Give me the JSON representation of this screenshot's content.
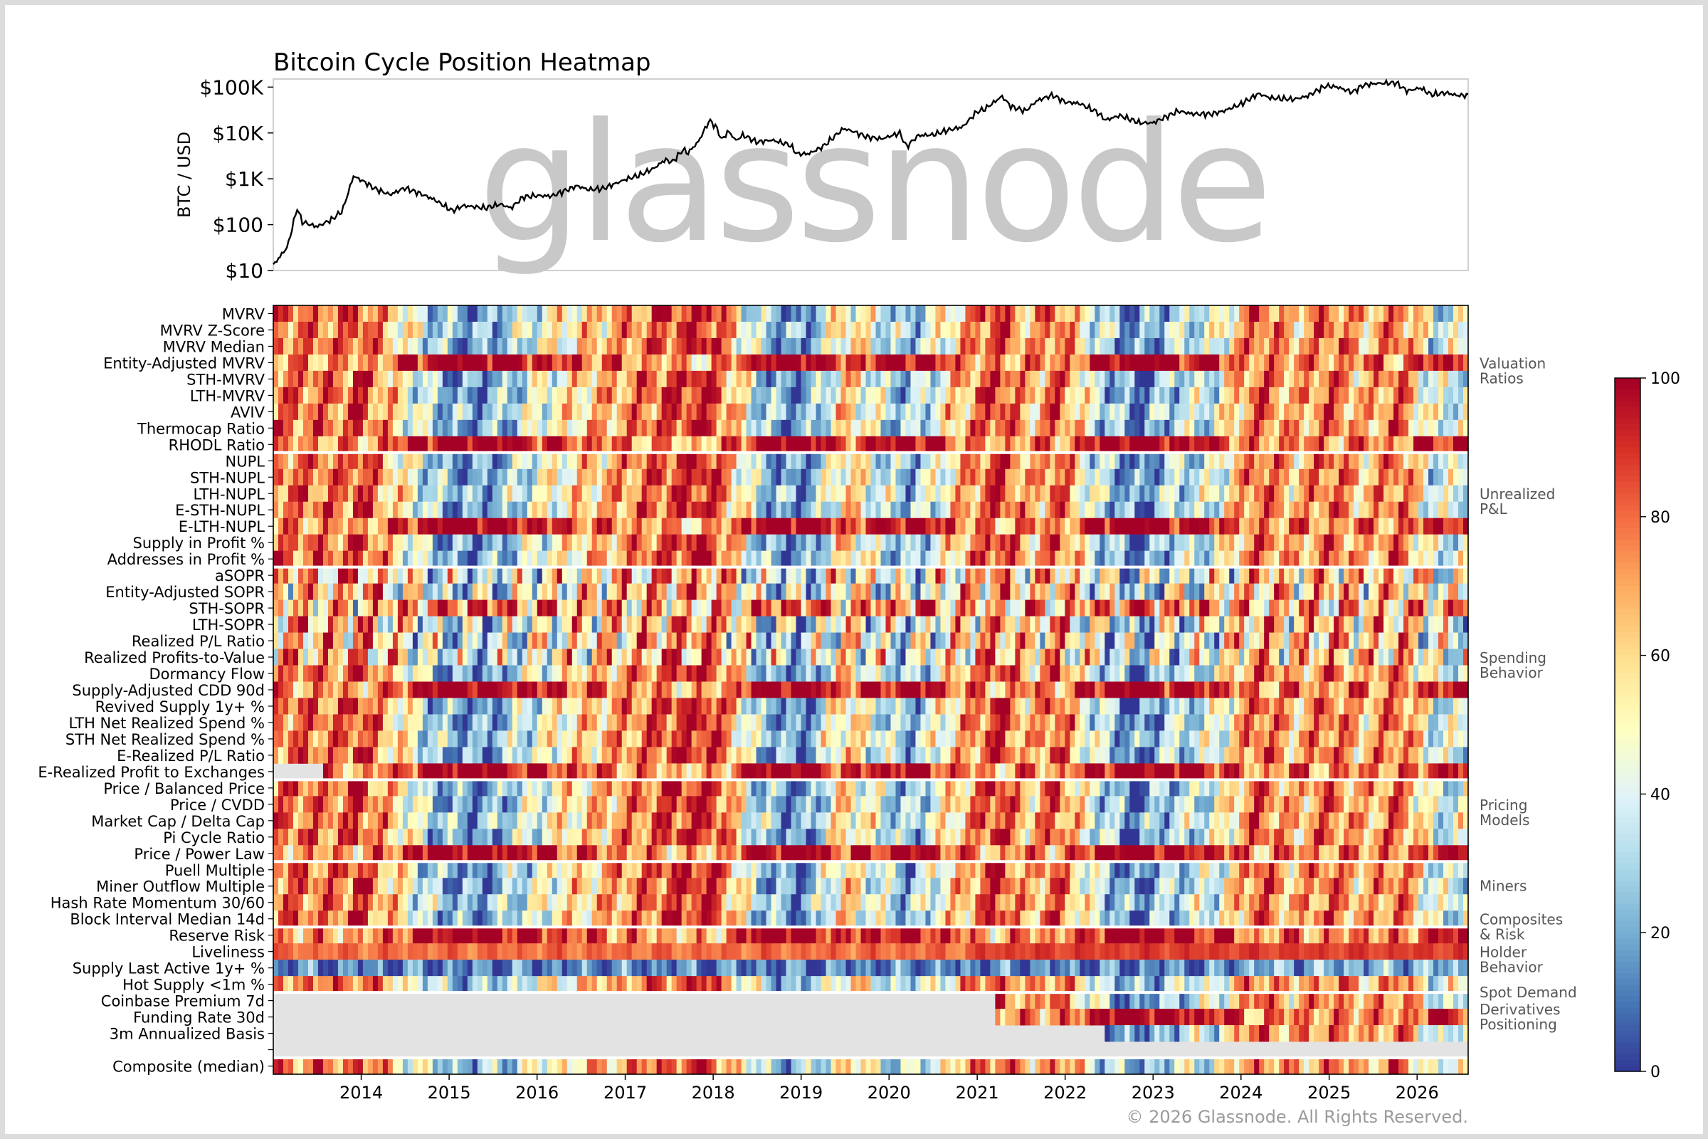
{
  "chart_data": [
    {
      "type": "line",
      "title": "Bitcoin Cycle Position Heatmap",
      "ylabel": "BTC / USD",
      "yscale": "log",
      "ylim": [
        10,
        150000
      ],
      "xlim": [
        "2013-01-01",
        "2026-08-01"
      ],
      "yticks": [
        "$10",
        "$100",
        "$1K",
        "$10K",
        "$100K"
      ],
      "watermark": "glassnode",
      "series": [
        {
          "x": [
            "2013-01-01",
            "2013-03-01",
            "2013-04-10",
            "2013-05-01",
            "2013-07-01",
            "2013-09-01",
            "2013-10-15",
            "2013-11-30",
            "2014-01-15",
            "2014-03-01",
            "2014-05-01",
            "2014-06-30",
            "2014-09-01",
            "2014-11-01",
            "2015-01-14",
            "2015-03-01",
            "2015-06-01",
            "2015-08-01",
            "2015-09-15",
            "2015-11-04",
            "2015-12-31",
            "2016-03-01",
            "2016-06-15",
            "2016-08-01",
            "2016-10-01",
            "2016-12-31",
            "2017-03-01",
            "2017-05-01",
            "2017-06-15",
            "2017-07-15",
            "2017-09-01",
            "2017-09-15",
            "2017-11-01",
            "2017-12-17",
            "2018-01-15",
            "2018-02-06",
            "2018-03-05",
            "2018-04-06",
            "2018-05-05",
            "2018-07-01",
            "2018-09-01",
            "2018-11-15",
            "2018-12-15",
            "2019-02-01",
            "2019-04-01",
            "2019-06-26",
            "2019-08-01",
            "2019-10-01",
            "2019-12-01",
            "2020-02-15",
            "2020-03-13",
            "2020-05-01",
            "2020-07-01",
            "2020-09-01",
            "2020-11-01",
            "2020-12-31",
            "2021-02-01",
            "2021-04-14",
            "2021-05-20",
            "2021-07-20",
            "2021-09-07",
            "2021-11-10",
            "2022-01-01",
            "2022-03-01",
            "2022-05-12",
            "2022-06-18",
            "2022-08-15",
            "2022-11-09",
            "2023-01-01",
            "2023-03-15",
            "2023-04-15",
            "2023-06-15",
            "2023-09-01",
            "2023-10-20",
            "2023-12-31",
            "2024-03-14",
            "2024-05-01",
            "2024-08-05",
            "2024-10-01",
            "2024-12-17",
            "2025-02-01",
            "2025-04-08",
            "2025-05-22",
            "2025-07-14",
            "2025-10-06",
            "2025-11-20",
            "2026-01-15",
            "2026-03-01",
            "2026-05-01",
            "2026-06-15",
            "2026-08-01"
          ],
          "y": [
            13,
            33,
            230,
            115,
            90,
            130,
            200,
            1150,
            850,
            600,
            450,
            630,
            480,
            350,
            200,
            260,
            230,
            280,
            230,
            400,
            430,
            420,
            700,
            580,
            610,
            960,
            1200,
            1700,
            2600,
            2300,
            4500,
            3500,
            6500,
            19000,
            13000,
            7000,
            11000,
            6800,
            9000,
            6300,
            7000,
            5500,
            3500,
            3500,
            5000,
            12500,
            11000,
            8200,
            7400,
            10000,
            5000,
            8800,
            9100,
            11500,
            13500,
            29000,
            33000,
            63000,
            38000,
            30000,
            51000,
            67000,
            47000,
            44000,
            29000,
            19000,
            24000,
            16500,
            16600,
            25000,
            30000,
            26000,
            25800,
            30000,
            42200,
            72000,
            58000,
            54000,
            63000,
            106000,
            101000,
            77000,
            110000,
            120000,
            124000,
            82000,
            96000,
            68000,
            75000,
            66000,
            66000
          ]
        }
      ]
    },
    {
      "type": "heatmap",
      "colorbar": {
        "min": 0,
        "max": 100,
        "ticks": [
          "0",
          "20",
          "40",
          "60",
          "80",
          "100"
        ]
      },
      "xticks": [
        "2014",
        "2015",
        "2016",
        "2017",
        "2018",
        "2019",
        "2020",
        "2021",
        "2022",
        "2023",
        "2024",
        "2025",
        "2026"
      ],
      "rows": [
        {
          "label": "MVRV",
          "group": 0,
          "start": "2013-01-01"
        },
        {
          "label": "MVRV Z-Score",
          "group": 0,
          "start": "2013-01-01"
        },
        {
          "label": "MVRV Median",
          "group": 0,
          "start": "2013-01-01"
        },
        {
          "label": "Entity-Adjusted MVRV",
          "group": 0,
          "start": "2013-01-01"
        },
        {
          "label": "STH-MVRV",
          "group": 0,
          "start": "2013-01-01"
        },
        {
          "label": "LTH-MVRV",
          "group": 0,
          "start": "2013-01-01"
        },
        {
          "label": "AVIV",
          "group": 0,
          "start": "2013-01-01"
        },
        {
          "label": "Thermocap Ratio",
          "group": 0,
          "start": "2013-01-01"
        },
        {
          "label": "RHODL Ratio",
          "group": 0,
          "start": "2013-01-01"
        },
        {
          "label": "NUPL",
          "group": 1,
          "start": "2013-01-01"
        },
        {
          "label": "STH-NUPL",
          "group": 1,
          "start": "2013-01-01"
        },
        {
          "label": "LTH-NUPL",
          "group": 1,
          "start": "2013-01-01"
        },
        {
          "label": "E-STH-NUPL",
          "group": 1,
          "start": "2013-01-01"
        },
        {
          "label": "E-LTH-NUPL",
          "group": 1,
          "start": "2013-01-01"
        },
        {
          "label": "Supply in Profit %",
          "group": 1,
          "start": "2013-01-01"
        },
        {
          "label": "Addresses in Profit %",
          "group": 1,
          "start": "2013-01-01"
        },
        {
          "label": "aSOPR",
          "group": 2,
          "start": "2013-01-01"
        },
        {
          "label": "Entity-Adjusted SOPR",
          "group": 2,
          "start": "2013-01-01"
        },
        {
          "label": "STH-SOPR",
          "group": 2,
          "start": "2013-01-01"
        },
        {
          "label": "LTH-SOPR",
          "group": 2,
          "start": "2013-01-01"
        },
        {
          "label": "Realized P/L Ratio",
          "group": 2,
          "start": "2013-01-01"
        },
        {
          "label": "Realized Profits-to-Value",
          "group": 2,
          "start": "2013-01-01"
        },
        {
          "label": "Dormancy Flow",
          "group": 2,
          "start": "2013-01-01"
        },
        {
          "label": "Supply-Adjusted CDD 90d",
          "group": 2,
          "start": "2013-01-01"
        },
        {
          "label": "Revived Supply 1y+ %",
          "group": 2,
          "start": "2013-01-01"
        },
        {
          "label": "LTH Net Realized Spend %",
          "group": 2,
          "start": "2013-01-01"
        },
        {
          "label": "STH Net Realized Spend %",
          "group": 2,
          "start": "2013-01-01"
        },
        {
          "label": "E-Realized P/L Ratio",
          "group": 2,
          "start": "2013-01-01"
        },
        {
          "label": "E-Realized Profit to Exchanges",
          "group": 2,
          "start": "2013-08-01"
        },
        {
          "label": "Price / Balanced Price",
          "group": 3,
          "start": "2013-01-01"
        },
        {
          "label": "Price / CVDD",
          "group": 3,
          "start": "2013-01-01"
        },
        {
          "label": "Market Cap / Delta Cap",
          "group": 3,
          "start": "2013-01-01"
        },
        {
          "label": "Pi Cycle Ratio",
          "group": 3,
          "start": "2013-01-01"
        },
        {
          "label": "Price / Power Law",
          "group": 3,
          "start": "2013-01-01"
        },
        {
          "label": "Puell Multiple",
          "group": 4,
          "start": "2013-01-01"
        },
        {
          "label": "Miner Outflow Multiple",
          "group": 4,
          "start": "2013-01-01"
        },
        {
          "label": "Hash Rate Momentum 30/60",
          "group": 4,
          "start": "2013-01-01"
        },
        {
          "label": "Block Interval Median 14d",
          "group": 4,
          "start": "2013-01-01"
        },
        {
          "label": "Reserve Risk",
          "group": 5,
          "start": "2013-01-01"
        },
        {
          "label": "Liveliness",
          "group": 6,
          "start": "2013-01-01"
        },
        {
          "label": "Supply Last Active 1y+ %",
          "group": 6,
          "start": "2013-01-01"
        },
        {
          "label": "Hot Supply <1m %",
          "group": 6,
          "start": "2013-01-01"
        },
        {
          "label": "Coinbase Premium 7d",
          "group": 7,
          "start": "2021-03-15"
        },
        {
          "label": "Funding Rate 30d",
          "group": 8,
          "start": "2021-03-15"
        },
        {
          "label": "3m Annualized Basis",
          "group": 8,
          "start": "2022-06-15"
        },
        {
          "label": "",
          "group": 8,
          "start": ""
        },
        {
          "label": "Composite (median)",
          "group": 9,
          "start": "2013-01-01"
        }
      ],
      "group_labels": [
        {
          "text": [
            "Valuation",
            "Ratios"
          ],
          "anchor_row": 4
        },
        {
          "text": [
            "Unrealized",
            "P&L"
          ],
          "anchor_row": 12
        },
        {
          "text": [
            "Spending",
            "Behavior"
          ],
          "anchor_row": 22
        },
        {
          "text": [
            "Pricing",
            "Models"
          ],
          "anchor_row": 31
        },
        {
          "text": [
            "Miners"
          ],
          "anchor_row": 35.5
        },
        {
          "text": [
            "Composites",
            "& Risk"
          ],
          "anchor_row": 38
        },
        {
          "text": [
            "Holder",
            "Behavior"
          ],
          "anchor_row": 40
        },
        {
          "text": [
            "Spot Demand"
          ],
          "anchor_row": 42
        },
        {
          "text": [
            "Derivatives",
            "Positioning"
          ],
          "anchor_row": 43.5
        }
      ]
    }
  ],
  "copyright": "© 2026 Glassnode. All Rights Reserved."
}
